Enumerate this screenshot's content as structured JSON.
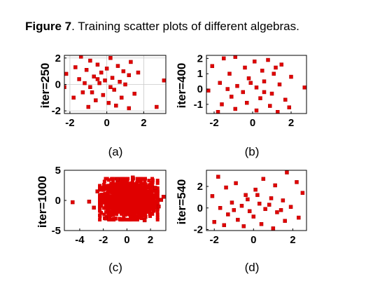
{
  "figure": {
    "label": "Figure 7",
    "caption": ". Training scatter plots of different algebras."
  },
  "colors": {
    "marker": "#e00000",
    "marker_edge": "#b00000",
    "axis": "#000000"
  },
  "chart_data": [
    {
      "type": "scatter",
      "panel": "(a)",
      "ylabel": "iter=250",
      "xlim": [
        -2.3,
        3.2
      ],
      "ylim": [
        -2.2,
        2.2
      ],
      "xticks": [
        "-2",
        "0",
        "2"
      ],
      "xtick_values": [
        -2,
        0,
        2
      ],
      "yticks": [
        "2",
        "0",
        "-2"
      ],
      "ytick_values": [
        2,
        0,
        -2
      ],
      "grid": true,
      "points": [
        [
          -1.4,
          2.1
        ],
        [
          -0.9,
          1.8
        ],
        [
          0.2,
          2.0
        ],
        [
          -0.5,
          1.5
        ],
        [
          1.3,
          1.7
        ],
        [
          0.6,
          1.4
        ],
        [
          -1.7,
          1.3
        ],
        [
          -1.1,
          1.1
        ],
        [
          -0.3,
          0.9
        ],
        [
          0.9,
          1.0
        ],
        [
          1.2,
          0.7
        ],
        [
          -0.7,
          0.6
        ],
        [
          0.3,
          0.5
        ],
        [
          -1.5,
          0.4
        ],
        [
          -0.1,
          0.3
        ],
        [
          0.7,
          0.2
        ],
        [
          -0.4,
          0.1
        ],
        [
          -2.2,
          0.8
        ],
        [
          3.1,
          0.3
        ],
        [
          1.0,
          0.0
        ],
        [
          -0.9,
          -0.2
        ],
        [
          0.4,
          -0.4
        ],
        [
          -1.3,
          -0.6
        ],
        [
          1.5,
          -0.7
        ],
        [
          -0.2,
          -0.8
        ],
        [
          0.8,
          -1.0
        ],
        [
          -1.8,
          -1.0
        ],
        [
          0.1,
          -1.4
        ],
        [
          -0.6,
          -1.2
        ],
        [
          1.2,
          -1.8
        ],
        [
          -1.0,
          -1.7
        ],
        [
          2.7,
          -1.7
        ],
        [
          0.5,
          -1.6
        ],
        [
          -2.3,
          -0.2
        ],
        [
          0.0,
          1.2
        ],
        [
          -1.2,
          0.1
        ],
        [
          1.7,
          0.9
        ],
        [
          -0.8,
          -0.6
        ],
        [
          0.2,
          -0.2
        ],
        [
          -0.5,
          0.4
        ]
      ]
    },
    {
      "type": "scatter",
      "panel": "(b)",
      "ylabel": "iter=400",
      "xlim": [
        -2.4,
        2.8
      ],
      "ylim": [
        -1.6,
        2.2
      ],
      "xticks": [
        "-2",
        "0",
        "2"
      ],
      "xtick_values": [
        -2,
        0,
        2
      ],
      "yticks": [
        "2",
        "1",
        "0",
        "-1"
      ],
      "ytick_values": [
        2,
        1,
        0,
        -1
      ],
      "grid": false,
      "points": [
        [
          -1.5,
          2.0
        ],
        [
          -0.9,
          2.1
        ],
        [
          0.1,
          1.8
        ],
        [
          0.8,
          1.9
        ],
        [
          1.5,
          1.6
        ],
        [
          -2.1,
          1.5
        ],
        [
          -0.4,
          1.4
        ],
        [
          0.5,
          1.2
        ],
        [
          1.1,
          1.0
        ],
        [
          -1.2,
          1.0
        ],
        [
          2.0,
          0.8
        ],
        [
          -0.2,
          0.7
        ],
        [
          0.6,
          0.5
        ],
        [
          -1.7,
          0.4
        ],
        [
          1.4,
          0.3
        ],
        [
          -0.8,
          0.2
        ],
        [
          0.2,
          0.1
        ],
        [
          2.7,
          0.1
        ],
        [
          -2.3,
          -0.1
        ],
        [
          -0.5,
          -0.2
        ],
        [
          1.0,
          -0.3
        ],
        [
          -1.1,
          -0.5
        ],
        [
          0.4,
          -0.6
        ],
        [
          1.7,
          -0.7
        ],
        [
          -0.3,
          -0.9
        ],
        [
          -1.6,
          -1.0
        ],
        [
          0.9,
          -1.1
        ],
        [
          1.9,
          -1.2
        ],
        [
          -0.9,
          -1.3
        ],
        [
          0.2,
          -1.4
        ],
        [
          -1.8,
          -1.5
        ],
        [
          1.3,
          -1.5
        ],
        [
          0.6,
          -0.2
        ],
        [
          -0.1,
          0.4
        ],
        [
          -1.3,
          0.0
        ],
        [
          1.2,
          1.4
        ]
      ]
    },
    {
      "type": "scatter",
      "panel": "(c)",
      "ylabel": "iter=1000",
      "xlim": [
        -5.3,
        3.3
      ],
      "ylim": [
        -5,
        5
      ],
      "xticks": [
        "-4",
        "-2",
        "0",
        "2"
      ],
      "xtick_values": [
        -4,
        -2,
        0,
        2
      ],
      "yticks": [
        "5",
        "0",
        "-5"
      ],
      "ytick_values": [
        5,
        0,
        -5
      ],
      "grid": false,
      "dense_cloud": {
        "x_range": [
          -2.3,
          2.6
        ],
        "y_range": [
          -3.2,
          3.6
        ],
        "n_points": 1400
      },
      "points": [
        [
          -3.2,
          -0.2
        ],
        [
          2.9,
          0.1
        ],
        [
          -2.5,
          1.5
        ],
        [
          2.7,
          -1.0
        ],
        [
          -1.8,
          -3.0
        ],
        [
          0.5,
          3.8
        ],
        [
          -4.6,
          -0.3
        ],
        [
          3.1,
          0.6
        ],
        [
          -2.8,
          -1.2
        ],
        [
          1.5,
          -3.3
        ],
        [
          -0.8,
          3.5
        ],
        [
          2.4,
          2.1
        ]
      ]
    },
    {
      "type": "scatter",
      "panel": "(d)",
      "ylabel": "iter=540",
      "xlim": [
        -2.4,
        2.7
      ],
      "ylim": [
        -2.1,
        3.5
      ],
      "xticks": [
        "-2",
        "0",
        "2"
      ],
      "xtick_values": [
        -2,
        0,
        2
      ],
      "yticks": [
        "2",
        "0",
        "-2"
      ],
      "ytick_values": [
        2,
        0,
        -2
      ],
      "grid": false,
      "points": [
        [
          1.7,
          3.3
        ],
        [
          -1.8,
          2.9
        ],
        [
          0.5,
          2.7
        ],
        [
          2.2,
          2.4
        ],
        [
          -0.9,
          2.3
        ],
        [
          1.1,
          2.1
        ],
        [
          -1.4,
          1.9
        ],
        [
          0.1,
          1.7
        ],
        [
          2.5,
          1.4
        ],
        [
          -0.4,
          1.2
        ],
        [
          -2.1,
          1.1
        ],
        [
          0.9,
          0.9
        ],
        [
          1.5,
          0.7
        ],
        [
          -1.1,
          0.5
        ],
        [
          0.3,
          0.4
        ],
        [
          -0.6,
          0.2
        ],
        [
          1.9,
          0.1
        ],
        [
          -1.7,
          0.0
        ],
        [
          0.6,
          -0.1
        ],
        [
          -0.2,
          -0.3
        ],
        [
          1.2,
          -0.4
        ],
        [
          -1.3,
          -0.6
        ],
        [
          0.0,
          -0.8
        ],
        [
          2.3,
          -0.9
        ],
        [
          -0.8,
          -1.1
        ],
        [
          1.6,
          -1.2
        ],
        [
          -2.0,
          -1.3
        ],
        [
          0.4,
          -1.5
        ],
        [
          -0.5,
          -1.7
        ],
        [
          1.0,
          -1.9
        ],
        [
          -1.5,
          -1.6
        ],
        [
          0.8,
          0.3
        ],
        [
          -0.3,
          0.8
        ],
        [
          1.4,
          -0.2
        ],
        [
          -1.0,
          -0.2
        ],
        [
          0.2,
          1.2
        ]
      ]
    }
  ]
}
